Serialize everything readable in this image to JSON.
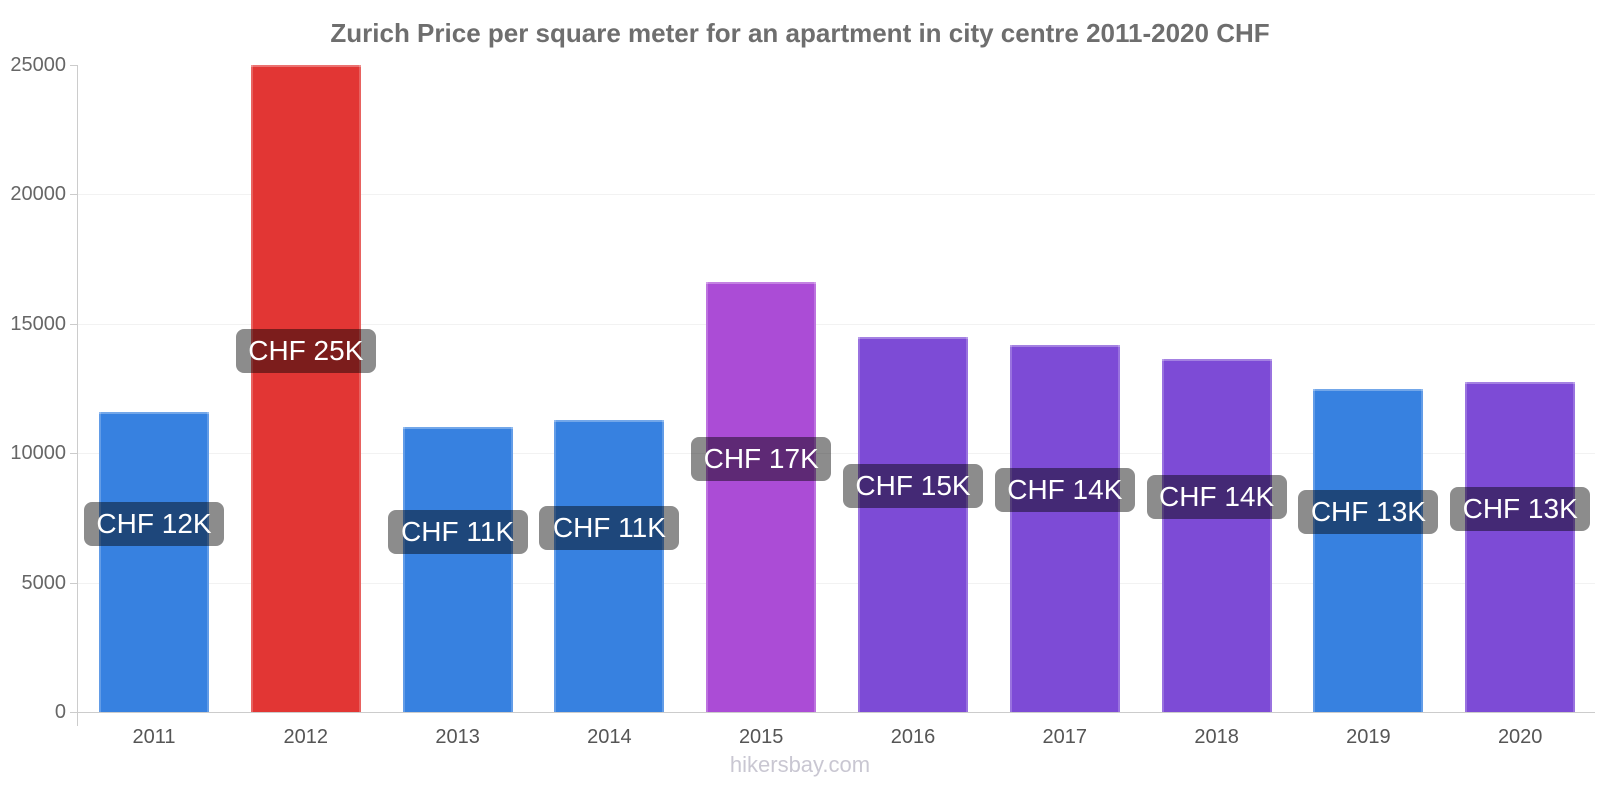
{
  "title": "Zurich Price per square meter for an apartment in city centre 2011-2020 CHF",
  "footer": {
    "label": "hikersbay.com"
  },
  "chart_data": {
    "type": "bar",
    "title": "Zurich Price per square meter for an apartment in city centre 2011-2020 CHF",
    "currency": "CHF",
    "categories": [
      "2011",
      "2012",
      "2013",
      "2014",
      "2015",
      "2016",
      "2017",
      "2018",
      "2019",
      "2020"
    ],
    "values": [
      11600,
      25000,
      11000,
      11300,
      16600,
      14500,
      14200,
      13650,
      12500,
      12750
    ],
    "bar_labels": [
      "CHF 12K",
      "CHF 25K",
      "CHF 11K",
      "CHF 11K",
      "CHF 17K",
      "CHF 15K",
      "CHF 14K",
      "CHF 14K",
      "CHF 13K",
      "CHF 13K"
    ],
    "bar_colors": [
      "#3781E0",
      "#E23634",
      "#3781E0",
      "#3781E0",
      "#AB4CD6",
      "#7D4BD6",
      "#7D4BD6",
      "#7D4BD6",
      "#3781E0",
      "#7D4BD6"
    ],
    "ylim": [
      0,
      25000
    ],
    "yticks": [
      0,
      5000,
      10000,
      15000,
      20000,
      25000
    ],
    "xlabel": "",
    "ylabel": "",
    "legend_position": "none",
    "grid": "horizontal-faint",
    "colors": {
      "axis": "#CCCCCC",
      "gridline": "#F2F2F2",
      "y_tick_label": "#666666",
      "x_tick_label": "#555555",
      "title": "#6E6E6E",
      "bar_label_bg": "rgba(0,0,0,0.45)",
      "bar_label_text": "#FFFFFF",
      "footer_text": "#C9C7D2"
    }
  }
}
